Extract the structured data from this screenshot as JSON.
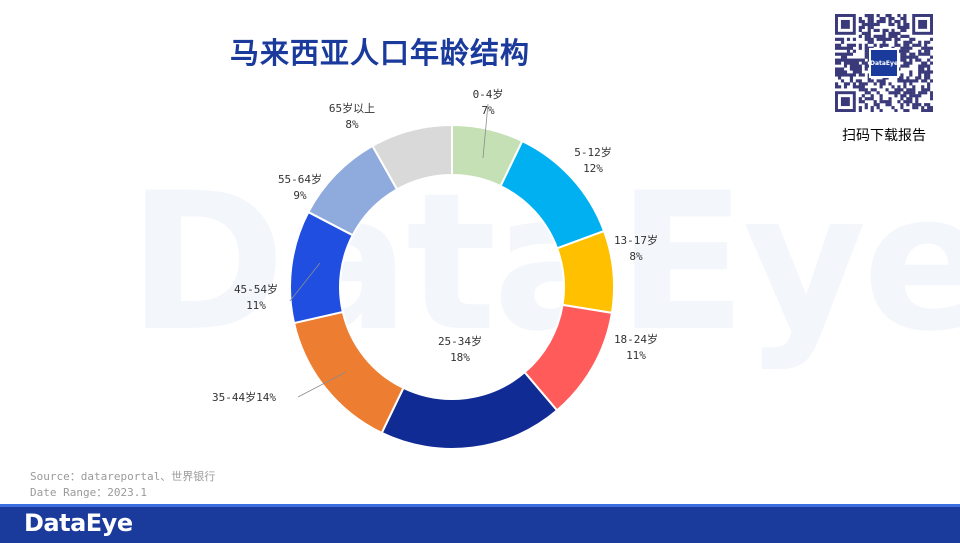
{
  "title": "马来西亚人口年龄结构",
  "watermark": "DataEye",
  "qr": {
    "logo_text": "DataEye",
    "caption": "扫码下载报告"
  },
  "source": {
    "line1": "Source：datareportal、世界银行",
    "line2": "Date Range：2023.1"
  },
  "footer": {
    "brand": "DataEye"
  },
  "chart_data": {
    "type": "pie",
    "subtype": "donut",
    "categories": [
      "0-4岁",
      "5-12岁",
      "13-17岁",
      "18-24岁",
      "25-34岁",
      "35-44岁",
      "45-54岁",
      "55-64岁",
      "65岁以上"
    ],
    "values": [
      7,
      12,
      8,
      11,
      18,
      14,
      11,
      9,
      8
    ],
    "value_labels": [
      "7%",
      "12%",
      "8%",
      "11%",
      "18%",
      "14%",
      "11%",
      "9%",
      "8%"
    ],
    "colors": [
      "#c5e0b4",
      "#00b0f0",
      "#ffc000",
      "#ff5b5b",
      "#102c94",
      "#ed7d31",
      "#1f4ee0",
      "#8faadc",
      "#d9d9d9"
    ],
    "legend": "none"
  }
}
